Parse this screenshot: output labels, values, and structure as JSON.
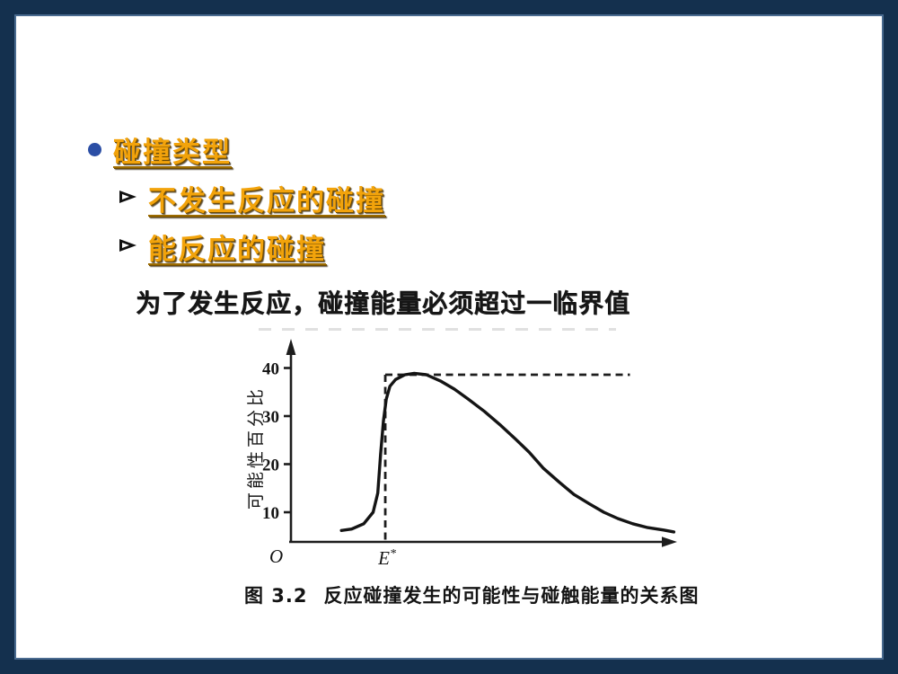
{
  "slide": {
    "list": {
      "title": "碰撞类型",
      "items": [
        "不发生反应的碰撞",
        "能反应的碰撞"
      ],
      "arrow_glyph": "➢"
    },
    "body_text": "为了发生反应，碰撞能量必须超过一临界值",
    "colors": {
      "frame": "#14304E",
      "gold": "#F2A30B",
      "bullet_blue": "#2B4EA5",
      "ink": "#161616"
    }
  },
  "chart_data": {
    "type": "line",
    "figure_label": "图 3.2",
    "title": "反应碰撞发生的可能性与碰触能量的关系图",
    "ylabel": "可能性百分比",
    "xlabel": "",
    "y_ticks": [
      10,
      20,
      30,
      40
    ],
    "ylim": [
      4,
      42
    ],
    "xlim": [
      0,
      4.35
    ],
    "grid": false,
    "legend": false,
    "origin_label": "O",
    "threshold": {
      "label": "E*",
      "x": 1.01
    },
    "dashed_guide": {
      "level": 38.6,
      "x_start": 1.01,
      "x_end": 3.63
    },
    "series": [
      {
        "name": "反应碰撞发生的可能性",
        "x": [
          0.54,
          0.65,
          0.78,
          0.88,
          0.93,
          0.96,
          0.99,
          1.02,
          1.06,
          1.12,
          1.22,
          1.32,
          1.45,
          1.6,
          1.75,
          1.9,
          2.07,
          2.25,
          2.4,
          2.55,
          2.7,
          2.87,
          3.03,
          3.2,
          3.35,
          3.5,
          3.66,
          3.82,
          3.99,
          4.1
        ],
        "y": [
          6.2,
          6.5,
          7.6,
          10.0,
          14.0,
          22.0,
          29.0,
          33.5,
          36.2,
          37.6,
          38.6,
          38.9,
          38.6,
          37.3,
          35.6,
          33.5,
          31.0,
          28.0,
          25.3,
          22.5,
          19.2,
          16.3,
          13.7,
          11.7,
          10.0,
          8.7,
          7.6,
          6.8,
          6.3,
          5.9
        ]
      }
    ]
  }
}
